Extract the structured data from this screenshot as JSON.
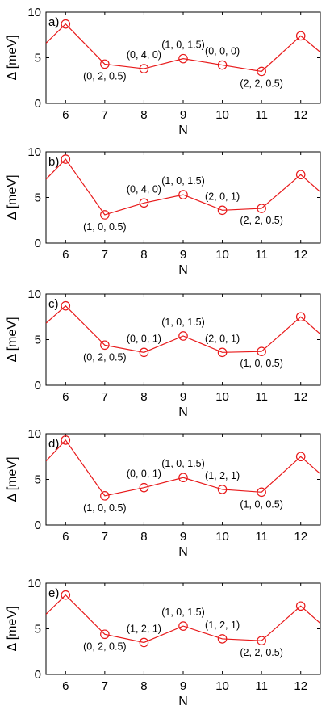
{
  "style": {
    "line_color": "#e8191a",
    "axis_color": "#000000",
    "background": "#ffffff"
  },
  "chart_data": [
    {
      "type": "line",
      "panel_label": "a)",
      "xlabel": "N",
      "ylabel": "Δ [meV]",
      "xlim": [
        5.5,
        12.5
      ],
      "ylim": [
        0,
        10
      ],
      "xticks": [
        6,
        7,
        8,
        9,
        10,
        11,
        12
      ],
      "yticks": [
        0,
        5,
        10
      ],
      "grid": false,
      "series": [
        {
          "x": [
            6,
            7,
            8,
            9,
            10,
            11,
            12
          ],
          "y": [
            8.7,
            4.3,
            3.8,
            4.9,
            4.2,
            3.5,
            7.4
          ],
          "point_labels": [
            "",
            "(0, 2, 0.5)",
            "(0, 4, 0)",
            "(1, 0, 1.5)",
            "(0, 0, 0)",
            "(2, 2, 0.5)",
            ""
          ],
          "label_position": [
            "",
            "below",
            "above",
            "above",
            "above",
            "below",
            ""
          ],
          "edge_left": 6.6,
          "edge_right": 5.6
        }
      ]
    },
    {
      "type": "line",
      "panel_label": "b)",
      "xlabel": "N",
      "ylabel": "Δ [meV]",
      "xlim": [
        5.5,
        12.5
      ],
      "ylim": [
        0,
        10
      ],
      "xticks": [
        6,
        7,
        8,
        9,
        10,
        11,
        12
      ],
      "yticks": [
        0,
        5,
        10
      ],
      "grid": false,
      "series": [
        {
          "x": [
            6,
            7,
            8,
            9,
            10,
            11,
            12
          ],
          "y": [
            9.2,
            3.1,
            4.4,
            5.3,
            3.6,
            3.8,
            7.5
          ],
          "point_labels": [
            "",
            "(1, 0, 0.5)",
            "(0, 4, 0)",
            "(1, 0, 1.5)",
            "(2, 0, 1)",
            "(2, 2, 0.5)",
            ""
          ],
          "label_position": [
            "",
            "below",
            "above",
            "above",
            "above",
            "below",
            ""
          ],
          "edge_left": 7.0,
          "edge_right": 5.6
        }
      ]
    },
    {
      "type": "line",
      "panel_label": "c)",
      "xlabel": "N",
      "ylabel": "Δ [meV]",
      "xlim": [
        5.5,
        12.5
      ],
      "ylim": [
        0,
        10
      ],
      "xticks": [
        6,
        7,
        8,
        9,
        10,
        11,
        12
      ],
      "yticks": [
        0,
        5,
        10
      ],
      "grid": false,
      "series": [
        {
          "x": [
            6,
            7,
            8,
            9,
            10,
            11,
            12
          ],
          "y": [
            8.7,
            4.4,
            3.6,
            5.4,
            3.6,
            3.7,
            7.5
          ],
          "point_labels": [
            "",
            "(0, 2, 0.5)",
            "(0, 0, 1)",
            "(1, 0, 1.5)",
            "(2, 0, 1)",
            "(1, 0, 0.5)",
            ""
          ],
          "label_position": [
            "",
            "below",
            "above",
            "above",
            "above",
            "below",
            ""
          ],
          "edge_left": 6.8,
          "edge_right": 5.6
        }
      ]
    },
    {
      "type": "line",
      "panel_label": "d)",
      "xlabel": "N",
      "ylabel": "Δ [meV]",
      "xlim": [
        5.5,
        12.5
      ],
      "ylim": [
        0,
        10
      ],
      "xticks": [
        6,
        7,
        8,
        9,
        10,
        11,
        12
      ],
      "yticks": [
        0,
        5,
        10
      ],
      "grid": false,
      "series": [
        {
          "x": [
            6,
            7,
            8,
            9,
            10,
            11,
            12
          ],
          "y": [
            9.3,
            3.2,
            4.1,
            5.2,
            3.9,
            3.6,
            7.5
          ],
          "point_labels": [
            "",
            "(1, 0, 0.5)",
            "(0, 0, 1)",
            "(1, 0, 1.5)",
            "(1, 2, 1)",
            "(1, 0, 0.5)",
            ""
          ],
          "label_position": [
            "",
            "below",
            "above",
            "above",
            "above",
            "below",
            ""
          ],
          "edge_left": 7.0,
          "edge_right": 5.6
        }
      ]
    },
    {
      "type": "line",
      "panel_label": "e)",
      "xlabel": "N",
      "ylabel": "Δ [meV]",
      "xlim": [
        5.5,
        12.5
      ],
      "ylim": [
        0,
        10
      ],
      "xticks": [
        6,
        7,
        8,
        9,
        10,
        11,
        12
      ],
      "yticks": [
        0,
        5,
        10
      ],
      "grid": false,
      "series": [
        {
          "x": [
            6,
            7,
            8,
            9,
            10,
            11,
            12
          ],
          "y": [
            8.7,
            4.4,
            3.5,
            5.3,
            3.9,
            3.7,
            7.5
          ],
          "point_labels": [
            "",
            "(0, 2, 0.5)",
            "(1, 2, 1)",
            "(1, 0, 1.5)",
            "(1, 2, 1)",
            "(2, 2, 0.5)",
            ""
          ],
          "label_position": [
            "",
            "below",
            "above",
            "above",
            "above",
            "below",
            ""
          ],
          "edge_left": 6.6,
          "edge_right": 5.6
        }
      ]
    }
  ]
}
